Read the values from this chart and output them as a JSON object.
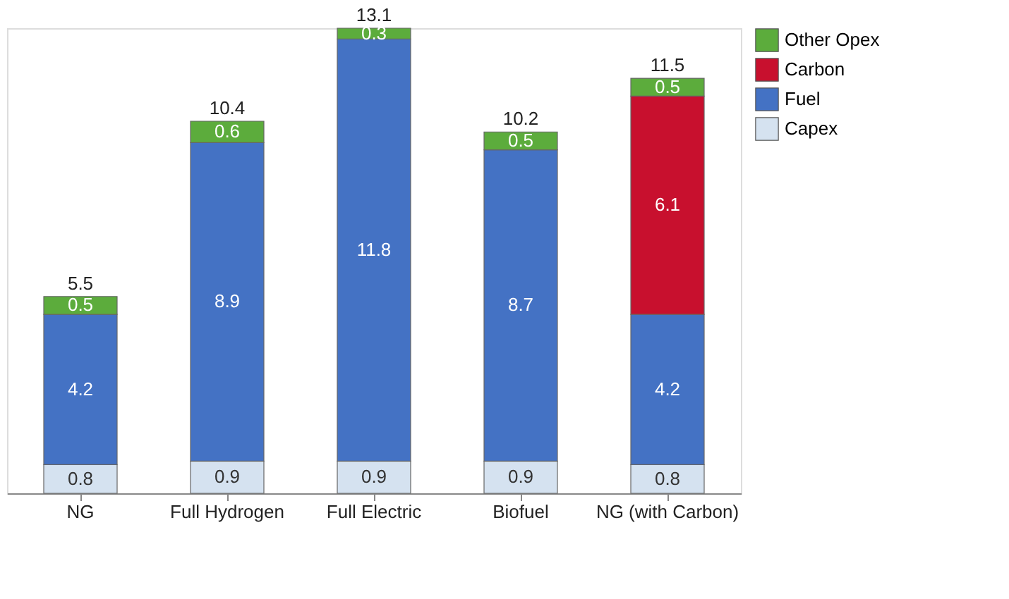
{
  "chart_data": {
    "type": "bar",
    "stacked": true,
    "data_labels": true,
    "legend": "top right",
    "grid": false,
    "categories": [
      "NG",
      "Full Hydrogen",
      "Full Electric",
      "Biofuel",
      "NG (with Carbon)"
    ],
    "series": [
      {
        "name": "Capex",
        "color": "#d5e2f0",
        "values": [
          0.8,
          0.9,
          0.9,
          0.9,
          0.8
        ]
      },
      {
        "name": "Fuel",
        "color": "#4472c4",
        "values": [
          4.2,
          8.9,
          11.8,
          8.7,
          4.2
        ]
      },
      {
        "name": "Carbon",
        "color": "#c8102e",
        "values": [
          null,
          null,
          null,
          null,
          6.1
        ]
      },
      {
        "name": "Other Opex",
        "color": "#5cac3c",
        "values": [
          0.5,
          0.6,
          0.3,
          0.5,
          0.5
        ]
      }
    ],
    "totals": [
      "5.5",
      "10.4",
      "13.1",
      "10.2",
      "11.5"
    ]
  }
}
